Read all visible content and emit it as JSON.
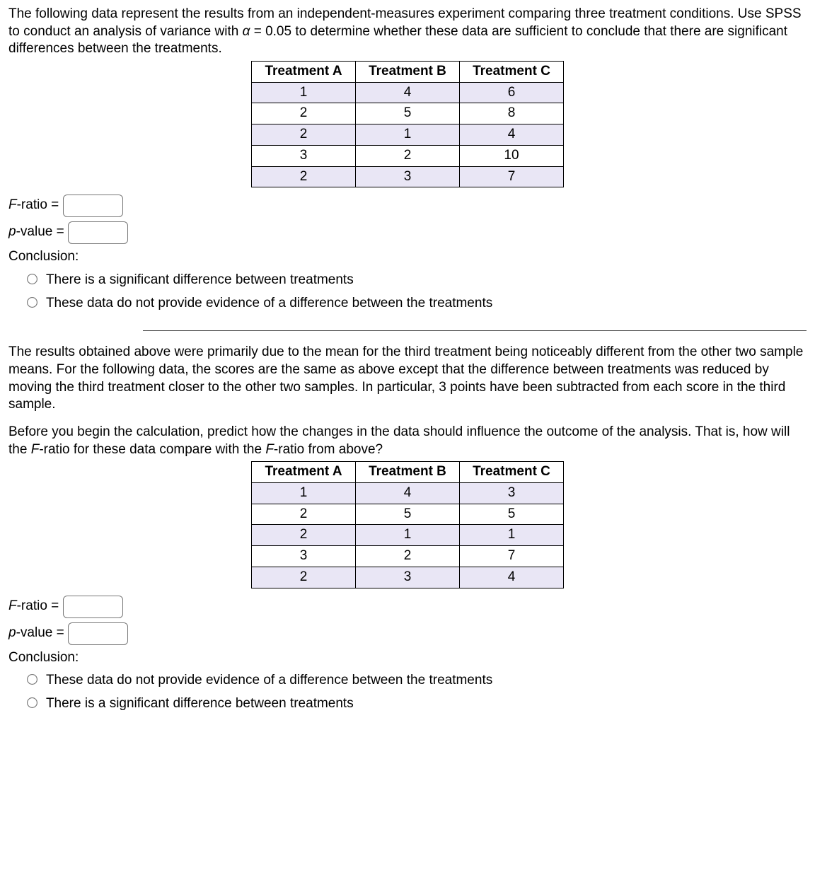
{
  "part1": {
    "prompt_a": "The following data represent the results from an independent-measures experiment comparing three treatment conditions. Use SPSS to conduct an analysis of variance with ",
    "alpha_sym": "α",
    "eq": " = ",
    "alpha_val": "0.05",
    "prompt_b": " to determine whether these data are sufficient to conclude that there are significant differences between the treatments.",
    "table": {
      "headers": [
        "Treatment A",
        "Treatment B",
        "Treatment C"
      ],
      "rows": [
        [
          "1",
          "4",
          "6"
        ],
        [
          "2",
          "5",
          "8"
        ],
        [
          "2",
          "1",
          "4"
        ],
        [
          "3",
          "2",
          "10"
        ],
        [
          "2",
          "3",
          "7"
        ]
      ],
      "alt_bg": "#e9e6f5"
    },
    "f_label": "F",
    "ratio_txt": "-ratio = ",
    "p_label": "p",
    "value_txt": "-value = ",
    "conclusion_label": "Conclusion:",
    "opt1": "There is a significant difference between treatments",
    "opt2": "These data do not provide evidence of a difference between the treatments"
  },
  "part2": {
    "para1": "The results obtained above were primarily due to the mean for the third treatment being noticeably different from the other two sample means. For the following data, the scores are the same as above except that the difference between treatments was reduced by moving the third treatment closer to the other two samples. In particular, 3 points have been subtracted from each score in the third sample.",
    "para2_a": "Before you begin the calculation, predict how the changes in the data should influence the outcome of the analysis. That is, how will the ",
    "F_it": "F",
    "para2_b": "-ratio for these data compare with the ",
    "para2_c": "-ratio from above?",
    "table": {
      "headers": [
        "Treatment A",
        "Treatment B",
        "Treatment C"
      ],
      "rows": [
        [
          "1",
          "4",
          "3"
        ],
        [
          "2",
          "5",
          "5"
        ],
        [
          "2",
          "1",
          "1"
        ],
        [
          "3",
          "2",
          "7"
        ],
        [
          "2",
          "3",
          "4"
        ]
      ]
    },
    "f_label": "F",
    "ratio_txt": "-ratio = ",
    "p_label": "p",
    "value_txt": "-value = ",
    "conclusion_label": "Conclusion:",
    "opt1": "These data do not provide evidence of a difference between the treatments",
    "opt2": "There is a significant difference between treatments"
  }
}
